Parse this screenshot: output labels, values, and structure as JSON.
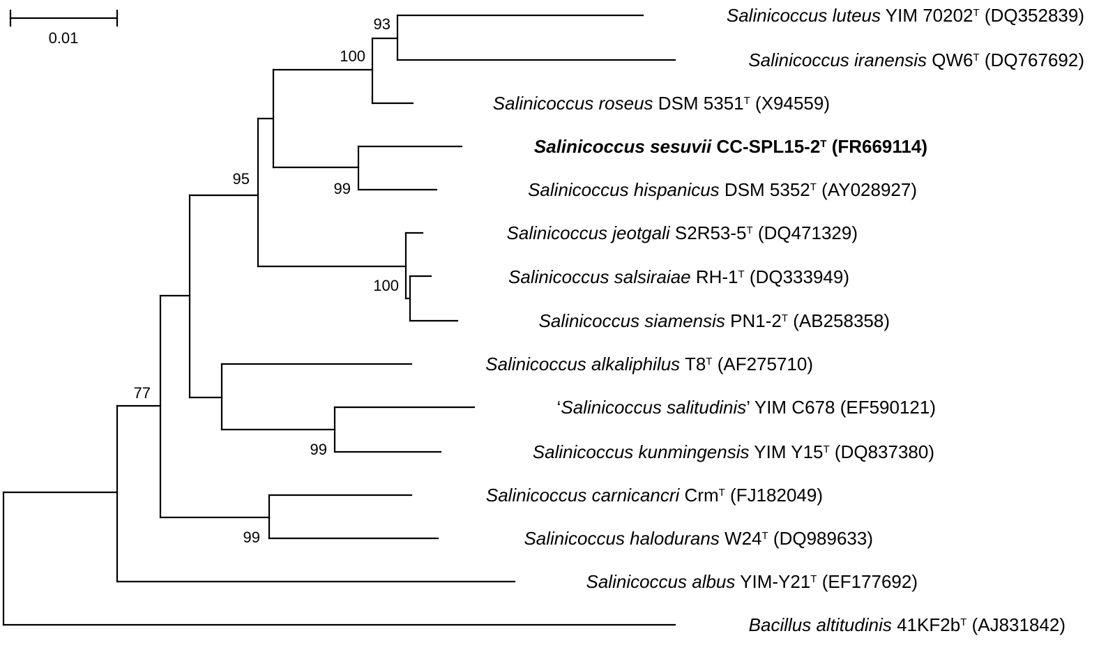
{
  "scale_bar": {
    "label": "0.01"
  },
  "taxa": [
    {
      "id": "t1",
      "genus": "Salinicoccus",
      "species": "luteus",
      "strain": "YIM 70202",
      "type_mark": "T",
      "accession": "(DQ352839)",
      "bold": false
    },
    {
      "id": "t2",
      "genus": "Salinicoccus",
      "species": "iranensis",
      "strain": "QW6",
      "type_mark": "T",
      "accession": "(DQ767692)",
      "bold": false
    },
    {
      "id": "t3",
      "genus": "Salinicoccus",
      "species": "roseus",
      "strain": "DSM 5351",
      "type_mark": "T",
      "accession": "(X94559)",
      "bold": false
    },
    {
      "id": "t4",
      "genus": "Salinicoccus",
      "species": "sesuvii",
      "strain": "CC-SPL15-2",
      "type_mark": "T",
      "accession": "(FR669114)",
      "bold": true
    },
    {
      "id": "t5",
      "genus": "Salinicoccus",
      "species": "hispanicus",
      "strain": "DSM 5352",
      "type_mark": "T",
      "accession": "(AY028927)",
      "bold": false
    },
    {
      "id": "t6",
      "genus": "Salinicoccus",
      "species": "jeotgali",
      "strain": "S2R53-5",
      "type_mark": "T",
      "accession": "(DQ471329)",
      "bold": false
    },
    {
      "id": "t7",
      "genus": "Salinicoccus",
      "species": "salsiraiae",
      "strain": "RH-1",
      "type_mark": "T",
      "accession": "(DQ333949)",
      "bold": false
    },
    {
      "id": "t8",
      "genus": "Salinicoccus",
      "species": "siamensis",
      "strain": "PN1-2",
      "type_mark": "T",
      "accession": "(AB258358)",
      "bold": false
    },
    {
      "id": "t9",
      "genus": "Salinicoccus",
      "species": "alkaliphilus",
      "strain": "T8",
      "type_mark": "T",
      "accession": "(AF275710)",
      "bold": false
    },
    {
      "id": "t10",
      "genus": "Salinicoccus",
      "species": "salitudinis",
      "strain": "YIM C678",
      "type_mark": "",
      "accession": "(EF590121)",
      "bold": false,
      "quoted": true
    },
    {
      "id": "t11",
      "genus": "Salinicoccus",
      "species": "kunmingensis",
      "strain": "YIM Y15",
      "type_mark": "T",
      "accession": "(DQ837380)",
      "bold": false
    },
    {
      "id": "t12",
      "genus": "Salinicoccus",
      "species": "carnicancri",
      "strain": "Crm",
      "type_mark": "T",
      "accession": "(FJ182049)",
      "bold": false
    },
    {
      "id": "t13",
      "genus": "Salinicoccus",
      "species": "halodurans",
      "strain": "W24",
      "type_mark": "T",
      "accession": "(DQ989633)",
      "bold": false
    },
    {
      "id": "t14",
      "genus": "Salinicoccus",
      "species": "albus",
      "strain": "YIM-Y21",
      "type_mark": "T",
      "accession": "(EF177692)",
      "bold": false
    },
    {
      "id": "t15",
      "genus": "Bacillus",
      "species": "altitudinis",
      "strain": "41KF2b",
      "type_mark": "T",
      "accession": "(AJ831842)",
      "bold": false
    }
  ],
  "bootstrap_values": [
    {
      "id": "n93",
      "value": "93"
    },
    {
      "id": "n100a",
      "value": "100"
    },
    {
      "id": "n99a",
      "value": "99"
    },
    {
      "id": "n95",
      "value": "95"
    },
    {
      "id": "n100b",
      "value": "100"
    },
    {
      "id": "n99b",
      "value": "99"
    },
    {
      "id": "n99c",
      "value": "99"
    },
    {
      "id": "n77",
      "value": "77"
    }
  ]
}
